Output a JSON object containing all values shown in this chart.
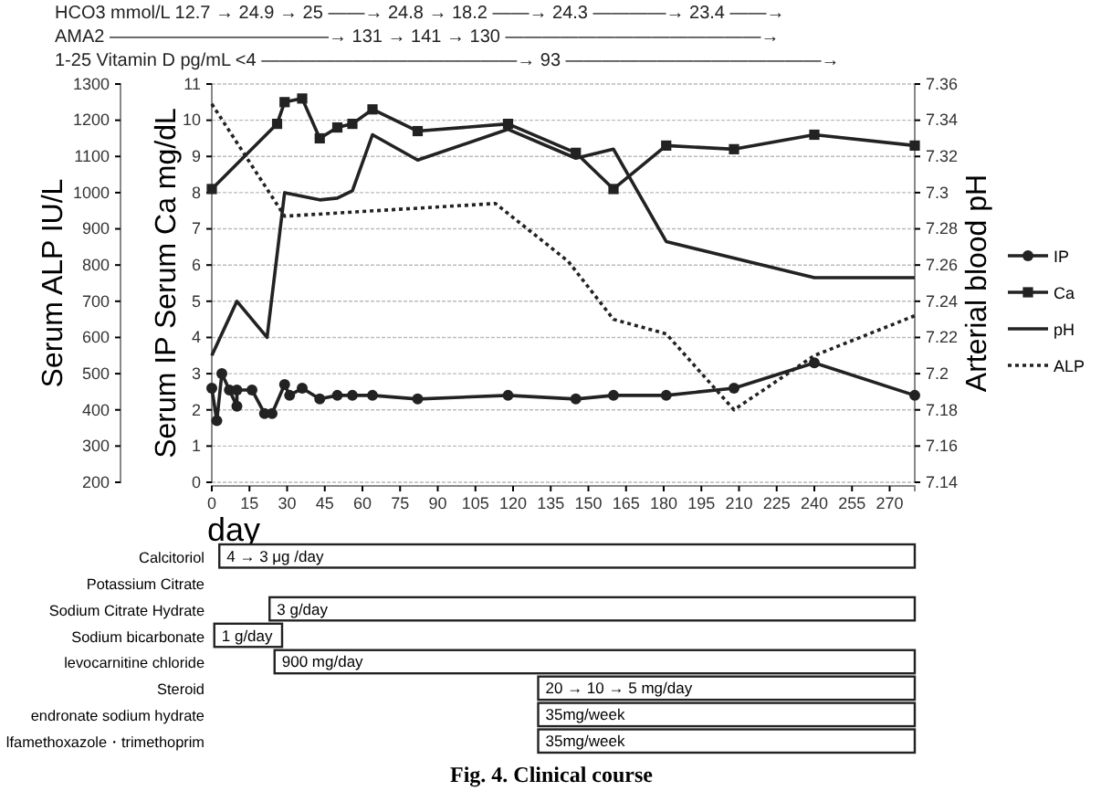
{
  "chart_data": [
    {
      "type": "line",
      "xlabel": "day",
      "ylabel": "Serum IP   Serum Ca  mg/dL",
      "y2label": "Arterial blood pH",
      "y3label": "Serum ALP IU/L",
      "xlim": [
        0,
        280
      ],
      "xticks": [
        0,
        15,
        30,
        45,
        60,
        75,
        90,
        105,
        120,
        135,
        150,
        165,
        180,
        195,
        210,
        225,
        240,
        255,
        270
      ],
      "ylim": [
        0,
        11
      ],
      "yticks": [
        0,
        1,
        2,
        3,
        4,
        5,
        6,
        7,
        8,
        9,
        10,
        11
      ],
      "y2lim": [
        7.14,
        7.36
      ],
      "y2ticks": [
        7.14,
        7.16,
        7.18,
        7.2,
        7.22,
        7.24,
        7.26,
        7.28,
        7.3,
        7.32,
        7.34,
        7.36
      ],
      "y3lim": [
        200,
        1300
      ],
      "y3ticks": [
        200,
        300,
        400,
        500,
        600,
        700,
        800,
        900,
        1000,
        1100,
        1200,
        1300
      ],
      "grid": "y",
      "legend": "right",
      "annotations": [
        "HCO3 mmol/L  12.7 → 24.9 → 25 ——→ 24.8 → 18.2 ——→ 24.3 ————→ 23.4 ——→",
        "AMA2  ————————————→ 131 → 141 → 130 ——————————————→",
        "1-25  Vitamin D pg/mL  <4 ——————————————→ 93 ——————————————→"
      ],
      "series": [
        {
          "name": "IP",
          "color": "#222222",
          "marker": "circle",
          "axis": "y",
          "x": [
            0,
            2,
            4,
            7,
            10,
            10,
            16,
            21,
            24,
            29,
            31,
            36,
            43,
            50,
            56,
            64,
            82,
            118,
            145,
            160,
            181,
            208,
            240,
            280
          ],
          "values": [
            2.6,
            1.7,
            3.0,
            2.55,
            2.1,
            2.55,
            2.55,
            1.9,
            1.9,
            2.7,
            2.4,
            2.6,
            2.3,
            2.4,
            2.4,
            2.4,
            2.3,
            2.4,
            2.3,
            2.4,
            2.4,
            2.6,
            3.3,
            2.4
          ]
        },
        {
          "name": "Ca",
          "color": "#222222",
          "marker": "square",
          "axis": "y",
          "x": [
            0,
            26,
            29,
            36,
            43,
            50,
            56,
            64,
            82,
            118,
            145,
            160,
            181,
            208,
            240,
            280
          ],
          "values": [
            8.1,
            9.9,
            10.5,
            10.6,
            9.5,
            9.8,
            9.9,
            10.3,
            9.7,
            9.9,
            9.1,
            8.1,
            9.3,
            9.2,
            9.6,
            9.3
          ]
        },
        {
          "name": "pH",
          "color": "#222222",
          "marker": "none",
          "line_style": "solid",
          "axis": "y2",
          "x": [
            0,
            10,
            22,
            29,
            43,
            50,
            56,
            64,
            82,
            118,
            145,
            160,
            181,
            240,
            280
          ],
          "values": [
            7.21,
            7.24,
            7.22,
            7.3,
            7.296,
            7.297,
            7.301,
            7.332,
            7.318,
            7.335,
            7.319,
            7.324,
            7.273,
            7.253,
            7.253
          ]
        },
        {
          "name": "ALP",
          "color": "#222222",
          "marker": "none",
          "line_style": "dotted",
          "axis": "y3",
          "x": [
            0,
            29,
            113,
            142,
            160,
            181,
            208,
            240,
            280
          ],
          "values": [
            1245,
            935,
            970,
            810,
            650,
            610,
            400,
            550,
            660
          ]
        }
      ]
    },
    {
      "type": "bar",
      "orientation": "horizontal",
      "tick_labels": "y",
      "xlim": [
        0,
        280
      ],
      "color": "#ffffff",
      "categories": [
        "Calcitoriol",
        "Potassium Citrate",
        "Sodium Citrate Hydrate",
        "Sodium bicarbonate",
        "levocarnitine chloride",
        "Steroid",
        "endronate sodium hydrate",
        "lfamethoxazole・trimethoprim"
      ],
      "base": [
        3,
        null,
        23,
        1,
        25,
        130,
        130,
        130
      ],
      "values": [
        277,
        null,
        257,
        27,
        255,
        150,
        150,
        150
      ],
      "annotations": [
        "Fig. 4.    Clinical course",
        {
          "text": "4 → 3 μg /day",
          "x": 3,
          "y": "Calcitoriol"
        },
        {
          "text": "3 g/day",
          "x": 23,
          "y": "Sodium Citrate Hydrate"
        },
        {
          "text": "1 g/day",
          "x": 1,
          "y": "Sodium bicarbonate"
        },
        {
          "text": "900 mg/day",
          "x": 25,
          "y": "levocarnitine chloride"
        },
        {
          "text": "20 → 10 → 5 mg/day",
          "x": 130,
          "y": "Steroid"
        },
        {
          "text": "35mg/week",
          "x": 130,
          "y": "endronate sodium hydrate"
        },
        {
          "text": "35mg/week",
          "x": 130,
          "y": "lfamethoxazole・trimethoprim"
        }
      ]
    }
  ]
}
